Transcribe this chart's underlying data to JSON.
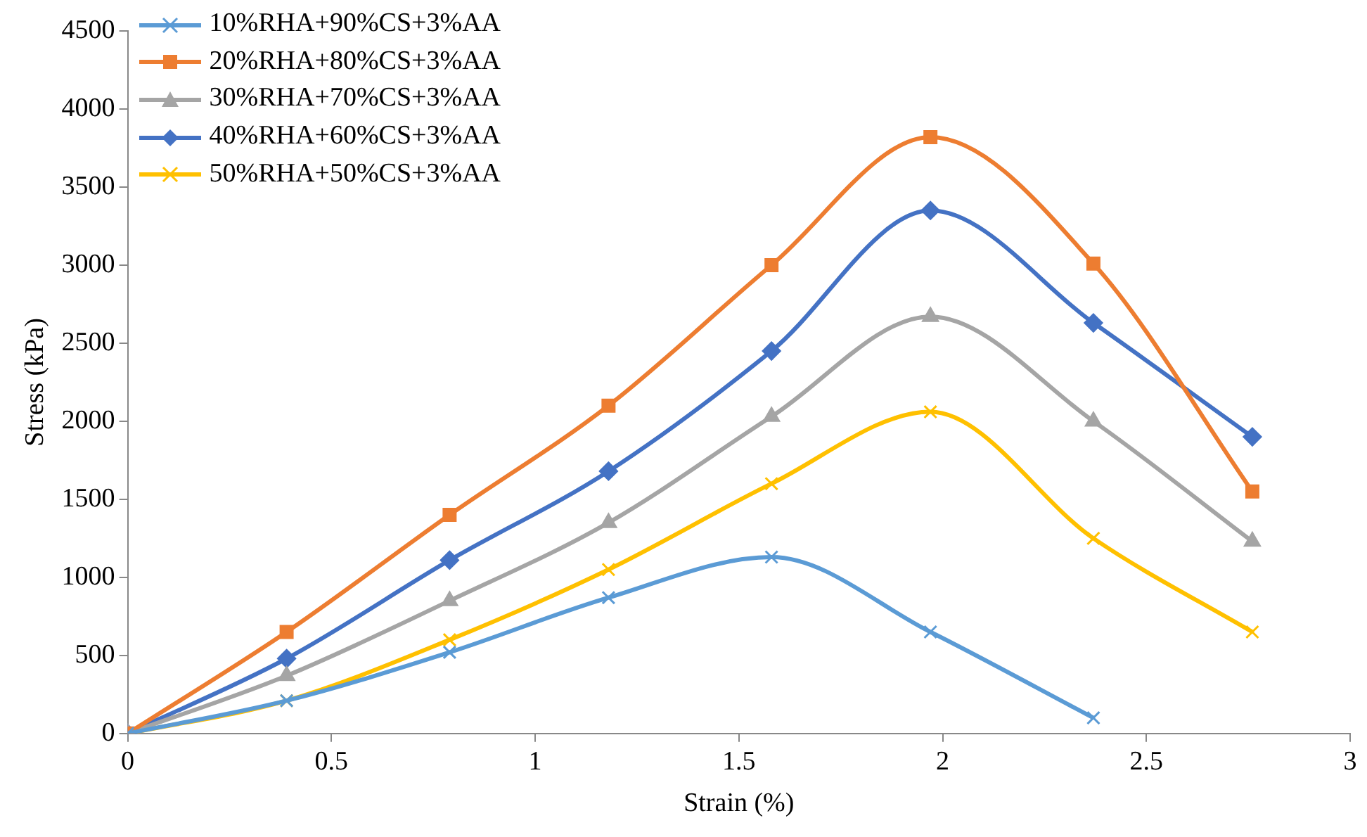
{
  "chart_data": {
    "type": "line",
    "xlabel": "Strain (%)",
    "ylabel": "Stress (kPa)",
    "xlim": [
      0,
      3
    ],
    "xticks": [
      0,
      0.5,
      1,
      1.5,
      2,
      2.5,
      3
    ],
    "ylim": [
      0,
      4500
    ],
    "yticks": [
      0,
      500,
      1000,
      1500,
      2000,
      2500,
      3000,
      3500,
      4000,
      4500
    ],
    "grid": false,
    "legend": "top left",
    "series": [
      {
        "name": "10%RHA+90%CS+3%AA",
        "color": "#5b9bd5",
        "marker": "cross",
        "x": [
          0,
          0.39,
          0.79,
          1.18,
          1.58,
          1.97,
          2.37
        ],
        "values": [
          0,
          210,
          520,
          870,
          1130,
          650,
          100
        ]
      },
      {
        "name": "20%RHA+80%CS+3%AA",
        "color": "#ed7d31",
        "marker": "square",
        "x": [
          0,
          0.39,
          0.79,
          1.18,
          1.58,
          1.97,
          2.37,
          2.76
        ],
        "values": [
          0,
          650,
          1400,
          2100,
          3000,
          3820,
          3010,
          1550
        ]
      },
      {
        "name": "30%RHA+70%CS+3%AA",
        "color": "#a5a5a5",
        "marker": "triangle",
        "x": [
          0,
          0.39,
          0.79,
          1.18,
          1.58,
          1.97,
          2.37,
          2.76
        ],
        "values": [
          0,
          370,
          850,
          1350,
          2030,
          2670,
          2000,
          1230
        ]
      },
      {
        "name": "40%RHA+60%CS+3%AA",
        "color": "#4472c4",
        "marker": "diamond",
        "x": [
          0,
          0.39,
          0.79,
          1.18,
          1.58,
          1.97,
          2.37,
          2.76
        ],
        "values": [
          0,
          480,
          1110,
          1680,
          2450,
          3350,
          2630,
          1900
        ]
      },
      {
        "name": "50%RHA+50%CS+3%AA",
        "color": "#ffc000",
        "marker": "cross",
        "x": [
          0,
          0.39,
          0.79,
          1.18,
          1.58,
          1.97,
          2.37,
          2.76
        ],
        "values": [
          0,
          210,
          600,
          1050,
          1600,
          2060,
          1250,
          650
        ]
      }
    ]
  }
}
